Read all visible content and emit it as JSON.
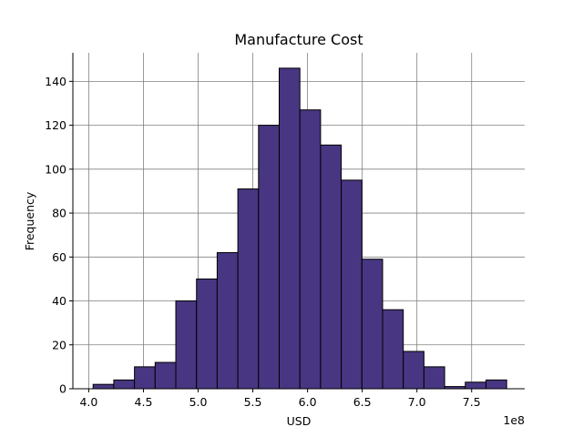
{
  "chart_data": {
    "type": "bar",
    "title": "Manufacture Cost",
    "xlabel": "USD",
    "ylabel": "Frequency",
    "x_offset_label": "1e8",
    "x_scale": 100000000,
    "xlim": [
      3.855,
      7.985
    ],
    "ylim": [
      0,
      153
    ],
    "grid": true,
    "x_ticks": [
      {
        "value": 4.0,
        "label": "4.0"
      },
      {
        "value": 4.5,
        "label": "4.5"
      },
      {
        "value": 5.0,
        "label": "5.0"
      },
      {
        "value": 5.5,
        "label": "5.5"
      },
      {
        "value": 6.0,
        "label": "6.0"
      },
      {
        "value": 6.5,
        "label": "6.5"
      },
      {
        "value": 7.0,
        "label": "7.0"
      },
      {
        "value": 7.5,
        "label": "7.5"
      }
    ],
    "y_ticks": [
      {
        "value": 0,
        "label": "0"
      },
      {
        "value": 20,
        "label": "20"
      },
      {
        "value": 40,
        "label": "40"
      },
      {
        "value": 60,
        "label": "60"
      },
      {
        "value": 80,
        "label": "80"
      },
      {
        "value": 100,
        "label": "100"
      },
      {
        "value": 120,
        "label": "120"
      },
      {
        "value": 140,
        "label": "140"
      }
    ],
    "bin_edges": [
      4.04,
      4.229,
      4.418,
      4.607,
      4.796,
      4.985,
      5.174,
      5.363,
      5.552,
      5.741,
      5.93,
      6.119,
      6.308,
      6.497,
      6.686,
      6.875,
      7.064,
      7.253,
      7.442,
      7.631,
      7.82
    ],
    "counts": [
      2,
      4,
      10,
      12,
      40,
      50,
      62,
      91,
      120,
      146,
      127,
      111,
      95,
      59,
      36,
      17,
      10,
      1,
      3,
      4
    ],
    "bar_color": "#483682",
    "edge_color": "#000000",
    "grid_color": "#808080"
  }
}
